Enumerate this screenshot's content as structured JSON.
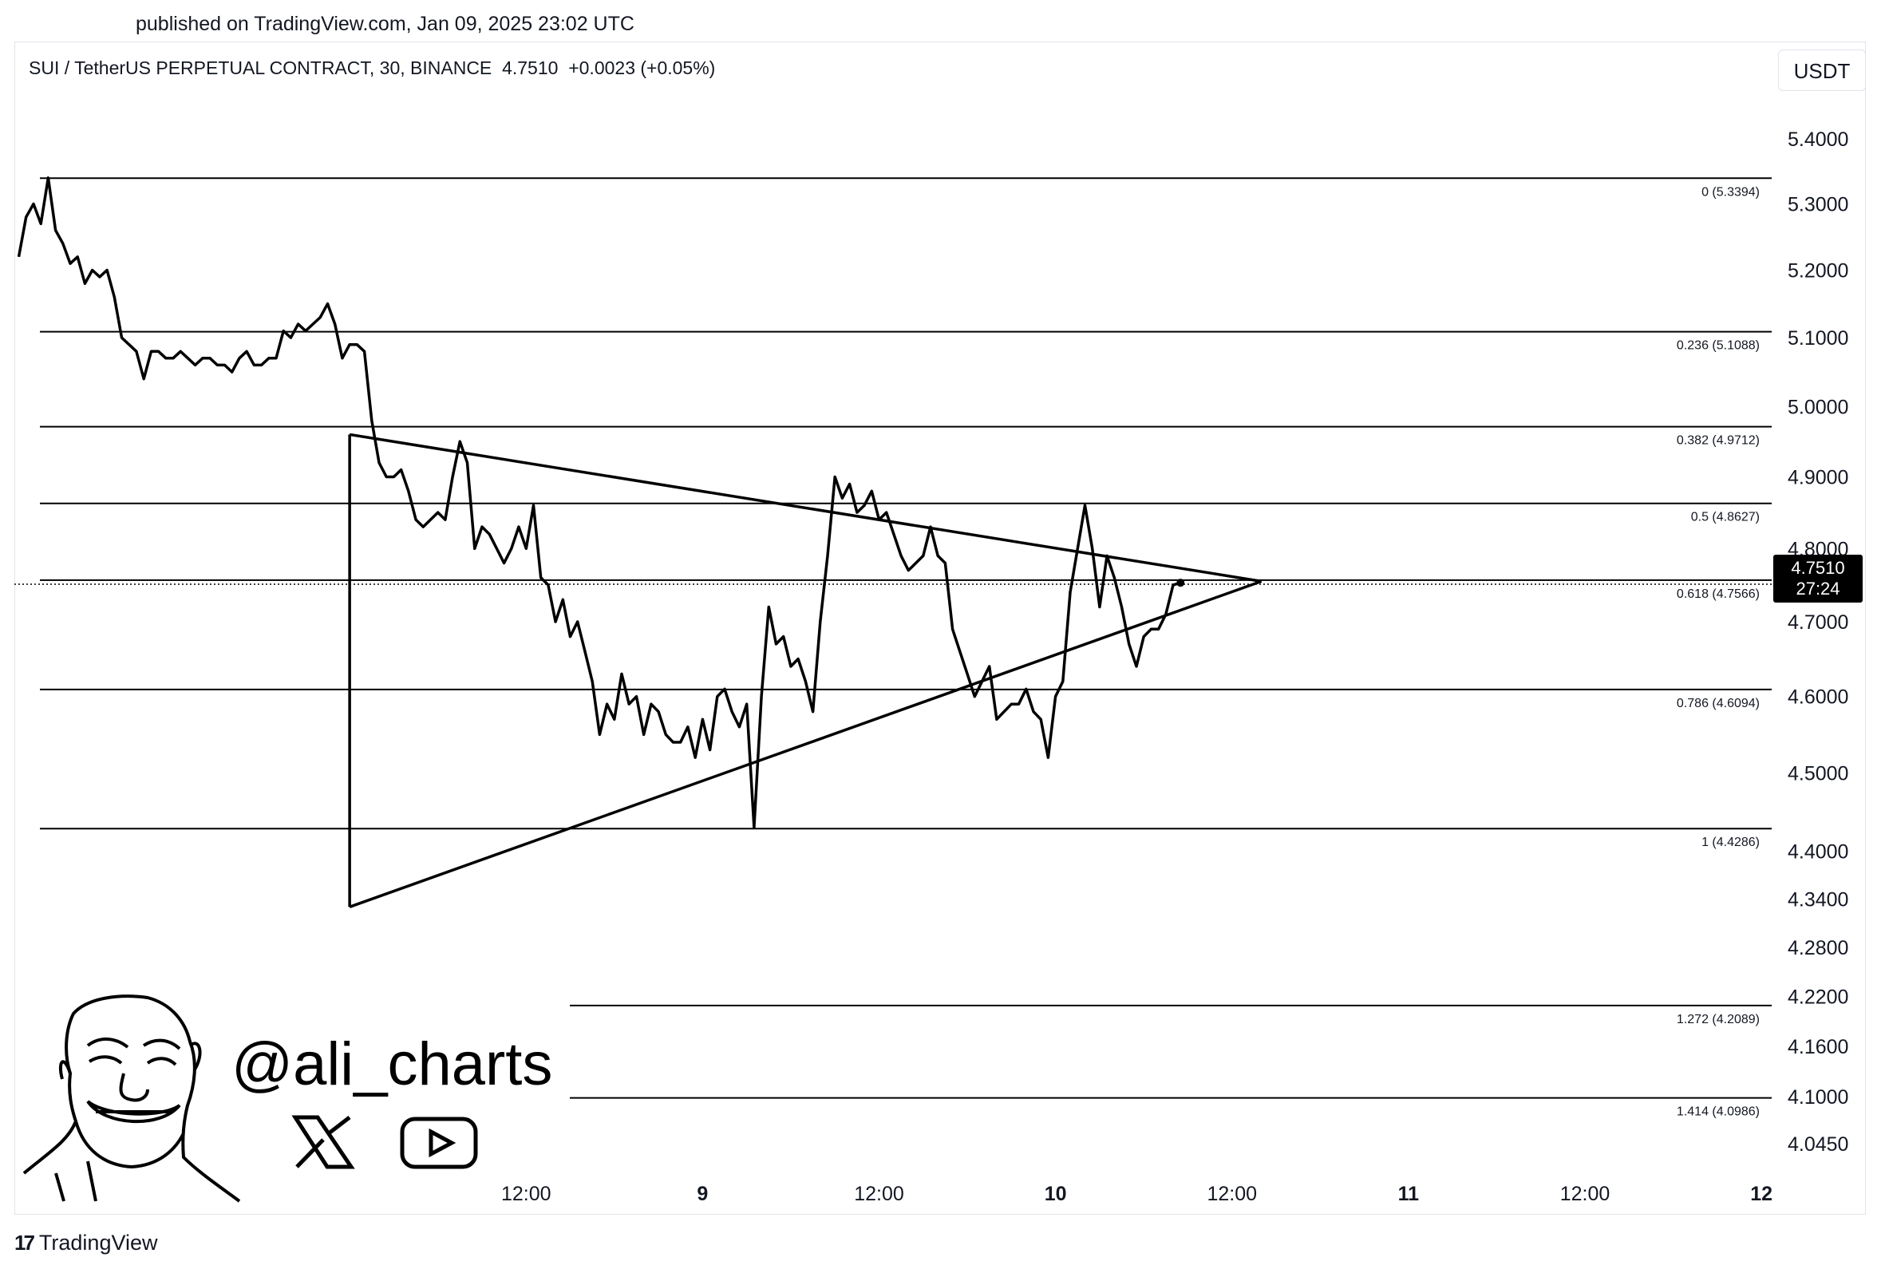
{
  "header": {
    "published": "published on TradingView.com, Jan 09, 2025 23:02 UTC"
  },
  "legend": {
    "symbol": "SUI / TetherUS PERPETUAL CONTRACT, 30, BINANCE",
    "last": "4.7510",
    "change": "+0.0023 (+0.05%)"
  },
  "currency_button": "USDT",
  "price_tag": {
    "price": "4.7510",
    "countdown": "27:24"
  },
  "watermark": {
    "handle": "@ali_charts",
    "icons": [
      "x-logo-icon",
      "youtube-icon",
      "avatar-caricature"
    ]
  },
  "footer": {
    "brand": "TradingView",
    "logo_icon": "tradingview-logo-icon"
  },
  "colors": {
    "line": "#000000",
    "grid": "#000000",
    "background": "#ffffff",
    "axis_text": "#131722"
  },
  "chart_data": {
    "type": "line",
    "title": "",
    "xlabel": "",
    "ylabel": "",
    "y_scale": "log",
    "ylim": [
      4.02,
      5.48
    ],
    "y_ticks": [
      "5.4000",
      "5.3000",
      "5.2000",
      "5.1000",
      "5.0000",
      "4.9000",
      "4.8000",
      "4.7000",
      "4.6000",
      "4.5000",
      "4.4000",
      "4.3400",
      "4.2800",
      "4.2200",
      "4.1600",
      "4.1000",
      "4.0450"
    ],
    "x_ticks": [
      {
        "label": "12:00",
        "bar": 24
      },
      {
        "label": "9",
        "bar": 48
      },
      {
        "label": "12:00",
        "bar": 72
      },
      {
        "label": "10",
        "bar": 96
      },
      {
        "label": "12:00",
        "bar": 120
      },
      {
        "label": "11",
        "bar": 144
      },
      {
        "label": "12:00",
        "bar": 168
      },
      {
        "label": "12",
        "bar": 192
      }
    ],
    "x_range_bars": [
      -45.6,
      193.4
    ],
    "series": [
      {
        "values": [
          5.22,
          5.28,
          5.3,
          5.27,
          5.34,
          5.26,
          5.24,
          5.21,
          5.22,
          5.18,
          5.2,
          5.19,
          5.2,
          5.16,
          5.1,
          5.09,
          5.08,
          5.04,
          5.08,
          5.08,
          5.07,
          5.07,
          5.08,
          5.07,
          5.06,
          5.07,
          5.07,
          5.06,
          5.06,
          5.05,
          5.07,
          5.08,
          5.06,
          5.06,
          5.07,
          5.07,
          5.11,
          5.1,
          5.12,
          5.11,
          5.12,
          5.13,
          5.15,
          5.12,
          5.07,
          5.09,
          5.09,
          5.08,
          4.98,
          4.92,
          4.9,
          4.9,
          4.91,
          4.88,
          4.84,
          4.83,
          4.84,
          4.85,
          4.84,
          4.9,
          4.95,
          4.92,
          4.8,
          4.83,
          4.82,
          4.8,
          4.78,
          4.8,
          4.83,
          4.8,
          4.86,
          4.76,
          4.75,
          4.7,
          4.73,
          4.68,
          4.7,
          4.66,
          4.62,
          4.55,
          4.59,
          4.57,
          4.63,
          4.59,
          4.6,
          4.55,
          4.59,
          4.58,
          4.55,
          4.54,
          4.54,
          4.56,
          4.52,
          4.57,
          4.53,
          4.6,
          4.61,
          4.58,
          4.56,
          4.59,
          4.43,
          4.6,
          4.72,
          4.67,
          4.68,
          4.64,
          4.65,
          4.62,
          4.58,
          4.7,
          4.79,
          4.9,
          4.87,
          4.89,
          4.85,
          4.86,
          4.88,
          4.84,
          4.85,
          4.82,
          4.79,
          4.77,
          4.78,
          4.79,
          4.83,
          4.79,
          4.78,
          4.69,
          4.66,
          4.63,
          4.6,
          4.62,
          4.64,
          4.57,
          4.58,
          4.59,
          4.59,
          4.61,
          4.58,
          4.57,
          4.52,
          4.6,
          4.62,
          4.74,
          4.8,
          4.86,
          4.8,
          4.72,
          4.79,
          4.76,
          4.72,
          4.67,
          4.64,
          4.68,
          4.69,
          4.69,
          4.71,
          4.75,
          4.753
        ]
      }
    ],
    "fibonacci_levels": [
      {
        "label": "0 (5.3394)",
        "value": 5.3394
      },
      {
        "label": "0.236 (5.1088)",
        "value": 5.1088
      },
      {
        "label": "0.382 (4.9712)",
        "value": 4.9712
      },
      {
        "label": "0.5 (4.8627)",
        "value": 4.8627
      },
      {
        "label": "0.618 (4.7566)",
        "value": 4.7566
      },
      {
        "label": "0.786 (4.6094)",
        "value": 4.6094
      },
      {
        "label": "1 (4.4286)",
        "value": 4.4286
      },
      {
        "label": "1.272 (4.2089)",
        "value": 4.2089
      },
      {
        "label": "1.414 (4.0986)",
        "value": 4.0986
      }
    ],
    "current_price": 4.751,
    "triangle": {
      "upper": [
        {
          "bar": 0,
          "value": 4.96
        },
        {
          "bar": 124,
          "value": 4.755
        }
      ],
      "lower": [
        {
          "bar": 0,
          "value": 4.33
        },
        {
          "bar": 124,
          "value": 4.755
        }
      ],
      "apex_note": "triangle pattern converging toward current price"
    }
  }
}
